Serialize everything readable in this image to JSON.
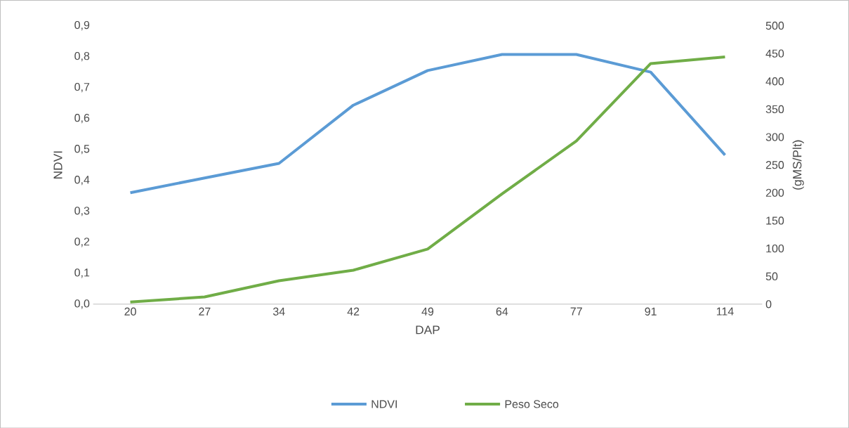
{
  "chart_data": {
    "type": "line",
    "xlabel": "DAP",
    "ylabel": "NDVI",
    "y2label": "(gMS/Plt)",
    "categories": [
      "20",
      "27",
      "34",
      "42",
      "49",
      "64",
      "77",
      "91",
      "114"
    ],
    "series": [
      {
        "name": "NDVI",
        "color": "#5b9bd5",
        "values": [
          0.36,
          0.408,
          0.455,
          0.643,
          0.755,
          0.807,
          0.807,
          0.75,
          0.482
        ]
      },
      {
        "name": "Peso Seco",
        "color": "#70ad47",
        "axis": "y2",
        "values": [
          4,
          13,
          42,
          61,
          99,
          198,
          293,
          432,
          444
        ]
      }
    ],
    "ylim": [
      0,
      0.9
    ],
    "yticks": [
      {
        "value": 0,
        "label": "0,0"
      },
      {
        "value": 0.1,
        "label": "0,1"
      },
      {
        "value": 0.2,
        "label": "0,2"
      },
      {
        "value": 0.3,
        "label": "0,3"
      },
      {
        "value": 0.4,
        "label": "0,4"
      },
      {
        "value": 0.5,
        "label": "0,5"
      },
      {
        "value": 0.6,
        "label": "0,6"
      },
      {
        "value": 0.7,
        "label": "0,7"
      },
      {
        "value": 0.8,
        "label": "0,8"
      },
      {
        "value": 0.9,
        "label": "0,9"
      }
    ],
    "y2lim": [
      0,
      500
    ],
    "y2ticks": [
      0,
      50,
      100,
      150,
      200,
      250,
      300,
      350,
      400,
      450,
      500
    ],
    "legend": "bottom",
    "marker": "none",
    "line_style": "solid"
  }
}
